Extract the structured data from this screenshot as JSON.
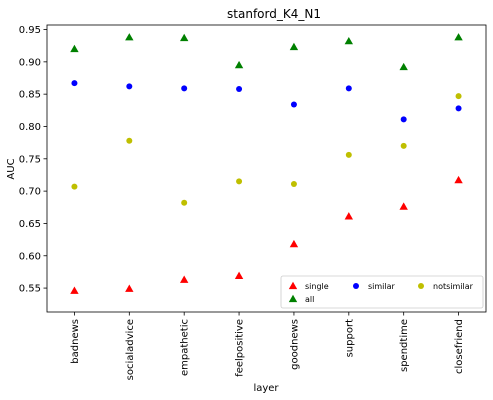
{
  "chart_data": {
    "type": "scatter",
    "title": "stanford_K4_N1",
    "xlabel": "layer",
    "ylabel": "AUC",
    "categories": [
      "badnews",
      "socialadvice",
      "empathetic",
      "feelpositive",
      "goodnews",
      "support",
      "spendtime",
      "closefriend"
    ],
    "ylim": [
      0.513,
      0.957
    ],
    "yticks": [
      0.55,
      0.6,
      0.65,
      0.7,
      0.75,
      0.8,
      0.85,
      0.9,
      0.95
    ],
    "ytick_labels": [
      "0.55",
      "0.60",
      "0.65",
      "0.70",
      "0.75",
      "0.80",
      "0.85",
      "0.90",
      "0.95"
    ],
    "grid": false,
    "legend": {
      "placement": "bottom-right",
      "columns": 3
    },
    "series": [
      {
        "name": "single",
        "marker": "triangle",
        "color": "#ff0000",
        "values": [
          0.546,
          0.549,
          0.563,
          0.569,
          0.618,
          0.661,
          0.676,
          0.717
        ]
      },
      {
        "name": "all",
        "marker": "triangle",
        "color": "#008000",
        "values": [
          0.92,
          0.938,
          0.937,
          0.895,
          0.923,
          0.932,
          0.892,
          0.938
        ]
      },
      {
        "name": "similar",
        "marker": "circle",
        "color": "#0000ff",
        "values": [
          0.867,
          0.862,
          0.859,
          0.858,
          0.834,
          0.859,
          0.811,
          0.828
        ]
      },
      {
        "name": "notsimilar",
        "marker": "circle",
        "color": "#bfbf00",
        "values": [
          0.707,
          0.778,
          0.682,
          0.715,
          0.711,
          0.756,
          0.77,
          0.847
        ]
      }
    ]
  }
}
